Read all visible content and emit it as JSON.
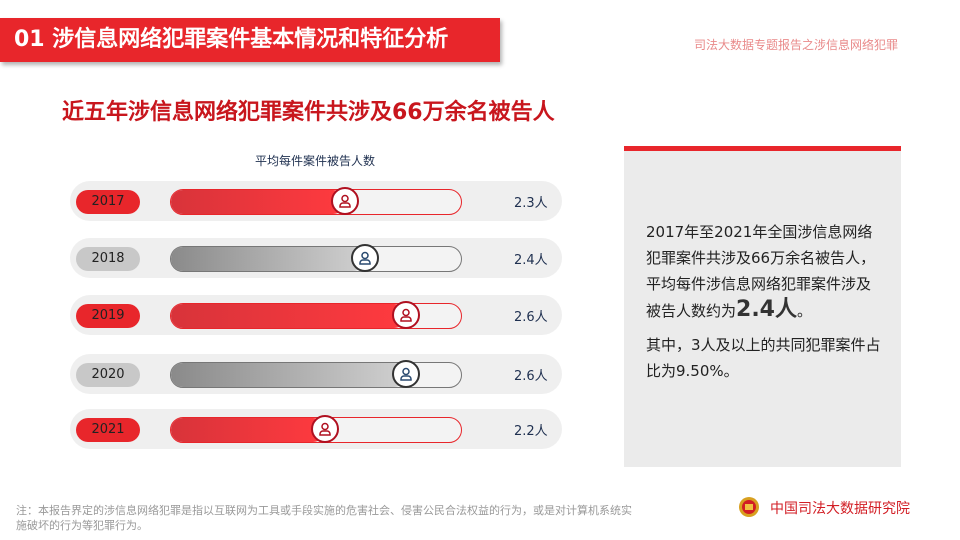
{
  "header": {
    "title": "01  涉信息网络犯罪案件基本情况和特征分析",
    "subtitle": "司法大数据专题报告之涉信息网络犯罪"
  },
  "main_title": "近五年涉信息网络犯罪案件共涉及66万余名被告人",
  "chart_data": {
    "type": "bar",
    "title": "平均每件案件被告人数",
    "categories": [
      "2017",
      "2018",
      "2019",
      "2020",
      "2021"
    ],
    "values": [
      2.3,
      2.4,
      2.6,
      2.6,
      2.2
    ],
    "labels": [
      "2.3人",
      "2.4人",
      "2.6人",
      "2.6人",
      "2.2人"
    ],
    "unit": "人",
    "colors": [
      "red",
      "gray",
      "red",
      "gray",
      "red"
    ]
  },
  "panel": {
    "p1_a": "2017年至2021年全国涉信息网络犯罪案件共涉及66万余名被告人，平均每件涉信息网络犯罪案件涉及被告人数约为",
    "p1_big": "2.4人",
    "p1_end": "。",
    "p2": "其中，3人及以上的共同犯罪案件占比为9.50%。"
  },
  "footer": {
    "note": "注：本报告界定的涉信息网络犯罪是指以互联网为工具或手段实施的危害社会、侵害公民合法权益的行为，或是对计算机系统实施破坏的行为等犯罪行为。",
    "org": "中国司法大数据研究院"
  },
  "colors": {
    "accent": "#e8262b",
    "gray": "#9a9a9a"
  }
}
